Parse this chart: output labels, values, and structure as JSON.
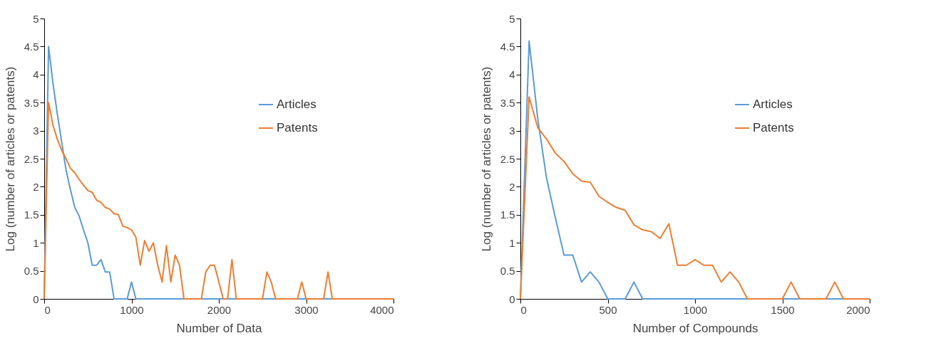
{
  "chart_data": [
    {
      "type": "line",
      "xlabel": "Number of Data",
      "ylabel": "Log (number of articles or patents)",
      "xlim": [
        0,
        4000
      ],
      "xticks": [
        0,
        1000,
        2000,
        3000,
        4000
      ],
      "ylim": [
        0,
        5
      ],
      "yticks": [
        0,
        0.5,
        1,
        1.5,
        2,
        2.5,
        3,
        3.5,
        4,
        4.5,
        5
      ],
      "grid": false,
      "legend": "top right",
      "marker": "none",
      "line_style": "solid",
      "series": [
        {
          "name": "Articles",
          "color": "#5b9bd5",
          "x": [
            0,
            50,
            100,
            150,
            200,
            250,
            300,
            350,
            400,
            450,
            500,
            550,
            600,
            650,
            700,
            750,
            800,
            850,
            900,
            950,
            1000,
            1050,
            1100,
            1150,
            1200,
            1250,
            1300,
            1350,
            1400,
            1450,
            1500,
            1550,
            1600,
            1650,
            1700,
            1750,
            1800,
            1850,
            1900,
            1950,
            2000,
            2050,
            2100,
            2150,
            2200,
            2250,
            2300,
            2350,
            2400,
            2450,
            2500,
            2550,
            2600,
            2650,
            2700,
            2750,
            2800,
            2850,
            2900,
            2950,
            3000,
            3050,
            3100,
            3150,
            3200,
            3250,
            3300
          ],
          "values": [
            0,
            4.5,
            3.85,
            3.3,
            2.8,
            2.3,
            1.95,
            1.63,
            1.48,
            1.23,
            1.0,
            0.6,
            0.6,
            0.7,
            0.48,
            0.48,
            0,
            0,
            0,
            0,
            0.3,
            0,
            0,
            0,
            0,
            0,
            0,
            0,
            0,
            0,
            0,
            0,
            0,
            0,
            0,
            0,
            0,
            0,
            0,
            0,
            0,
            0,
            0,
            0,
            0,
            0,
            0,
            0,
            0,
            0,
            0,
            0,
            0,
            0,
            0,
            0,
            0,
            0,
            0,
            0,
            0,
            0,
            0,
            0,
            0,
            0,
            0
          ]
        },
        {
          "name": "Patents",
          "color": "#ed7d31",
          "x": [
            0,
            50,
            100,
            150,
            200,
            250,
            300,
            350,
            400,
            450,
            500,
            550,
            600,
            650,
            700,
            750,
            800,
            850,
            900,
            950,
            1000,
            1050,
            1100,
            1150,
            1200,
            1250,
            1300,
            1350,
            1400,
            1450,
            1500,
            1550,
            1600,
            1650,
            1700,
            1750,
            1800,
            1850,
            1900,
            1950,
            2000,
            2050,
            2100,
            2150,
            2200,
            2250,
            2300,
            2350,
            2400,
            2450,
            2500,
            2550,
            2600,
            2650,
            2700,
            2750,
            2800,
            2850,
            2900,
            2950,
            3000,
            3050,
            3100,
            3150,
            3200,
            3250,
            3300,
            3350,
            3400,
            3450,
            3500,
            3550,
            3600,
            3650,
            3700,
            3750,
            3800,
            3850,
            3900,
            3950,
            4000
          ],
          "values": [
            0,
            3.5,
            3.1,
            2.85,
            2.65,
            2.5,
            2.33,
            2.25,
            2.13,
            2.03,
            1.93,
            1.9,
            1.76,
            1.72,
            1.63,
            1.6,
            1.52,
            1.5,
            1.3,
            1.27,
            1.23,
            1.1,
            0.6,
            1.04,
            0.85,
            1.0,
            0.6,
            0.3,
            0.95,
            0.3,
            0.78,
            0.6,
            0,
            0,
            0,
            0,
            0,
            0.48,
            0.6,
            0.6,
            0.3,
            0,
            0,
            0.7,
            0,
            0,
            0,
            0,
            0,
            0,
            0,
            0.48,
            0.3,
            0,
            0,
            0,
            0,
            0,
            0,
            0.3,
            0,
            0,
            0,
            0,
            0,
            0.48,
            0,
            0,
            0,
            0,
            0,
            0,
            0,
            0,
            0,
            0,
            0,
            0,
            0,
            0,
            0
          ]
        }
      ]
    },
    {
      "type": "line",
      "xlabel": "Number of Compounds",
      "ylabel": "Log (number of articles or patents)",
      "xlim": [
        0,
        2000
      ],
      "xticks": [
        0,
        500,
        1000,
        1500,
        2000
      ],
      "ylim": [
        0,
        5
      ],
      "yticks": [
        0,
        0.5,
        1,
        1.5,
        2,
        2.5,
        3,
        3.5,
        4,
        4.5,
        5
      ],
      "grid": false,
      "legend": "top right",
      "marker": "none",
      "line_style": "solid",
      "series": [
        {
          "name": "Articles",
          "color": "#5b9bd5",
          "x": [
            0,
            50,
            100,
            150,
            200,
            250,
            300,
            350,
            400,
            450,
            500,
            550,
            600,
            650,
            700,
            750,
            800,
            850,
            900,
            950,
            1000,
            1050,
            1100,
            1150,
            1200,
            1250,
            1300,
            1350,
            1400,
            1450,
            1500,
            1550,
            1600,
            1650,
            1700,
            1750,
            1800,
            1850,
            1900
          ],
          "values": [
            0,
            4.6,
            3.2,
            2.15,
            1.45,
            0.78,
            0.78,
            0.3,
            0.48,
            0.3,
            0,
            0,
            0,
            0.3,
            0,
            0,
            0,
            0,
            0,
            0,
            0,
            0,
            0,
            0,
            0,
            0,
            0,
            0,
            0,
            0,
            0,
            0,
            0,
            0,
            0,
            0,
            0,
            0,
            0
          ]
        },
        {
          "name": "Patents",
          "color": "#ed7d31",
          "x": [
            0,
            50,
            100,
            150,
            200,
            250,
            300,
            350,
            400,
            450,
            500,
            550,
            600,
            650,
            700,
            750,
            800,
            850,
            900,
            950,
            1000,
            1050,
            1100,
            1150,
            1200,
            1250,
            1300,
            1350,
            1400,
            1450,
            1500,
            1550,
            1600,
            1650,
            1700,
            1750,
            1800,
            1850,
            1900,
            1950,
            2000
          ],
          "values": [
            0,
            3.6,
            3.05,
            2.85,
            2.6,
            2.45,
            2.23,
            2.1,
            2.08,
            1.83,
            1.72,
            1.63,
            1.58,
            1.32,
            1.23,
            1.2,
            1.08,
            1.34,
            0.6,
            0.6,
            0.7,
            0.6,
            0.6,
            0.3,
            0.48,
            0.3,
            0,
            0,
            0,
            0,
            0,
            0.3,
            0,
            0,
            0,
            0,
            0.3,
            0,
            0,
            0,
            0
          ]
        }
      ]
    }
  ]
}
